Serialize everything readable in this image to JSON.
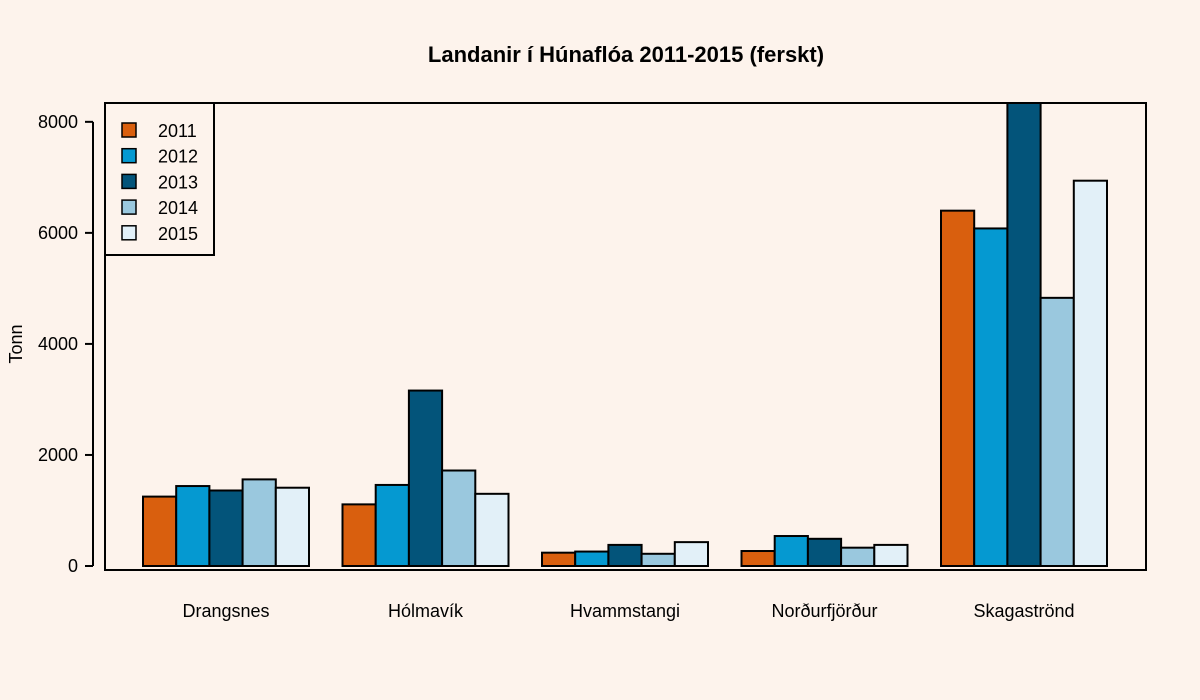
{
  "chart_data": {
    "type": "bar",
    "title": "Landanir í Húnaflóa 2011-2015 (ferskt)",
    "xlabel": "",
    "ylabel": "Tonn",
    "ylim": [
      0,
      8350
    ],
    "yticks": [
      "0",
      "2000",
      "4000",
      "6000",
      "8000"
    ],
    "categories": [
      "Drangsnes",
      "Hólmavík",
      "Hvammstangi",
      "Norðurfjörður",
      "Skagaströnd"
    ],
    "series": [
      {
        "name": "2011",
        "color": "#d95f0e",
        "values": [
          1250,
          1110,
          240,
          270,
          6400
        ]
      },
      {
        "name": "2012",
        "color": "#0599d1",
        "values": [
          1440,
          1460,
          260,
          540,
          6080
        ]
      },
      {
        "name": "2013",
        "color": "#03547a",
        "values": [
          1360,
          3160,
          380,
          490,
          8350
        ]
      },
      {
        "name": "2014",
        "color": "#9ac8de",
        "values": [
          1560,
          1720,
          220,
          330,
          4830
        ]
      },
      {
        "name": "2015",
        "color": "#e2f0f8",
        "values": [
          1410,
          1300,
          430,
          380,
          6940
        ]
      }
    ],
    "legend": "top-left",
    "grid": false
  }
}
